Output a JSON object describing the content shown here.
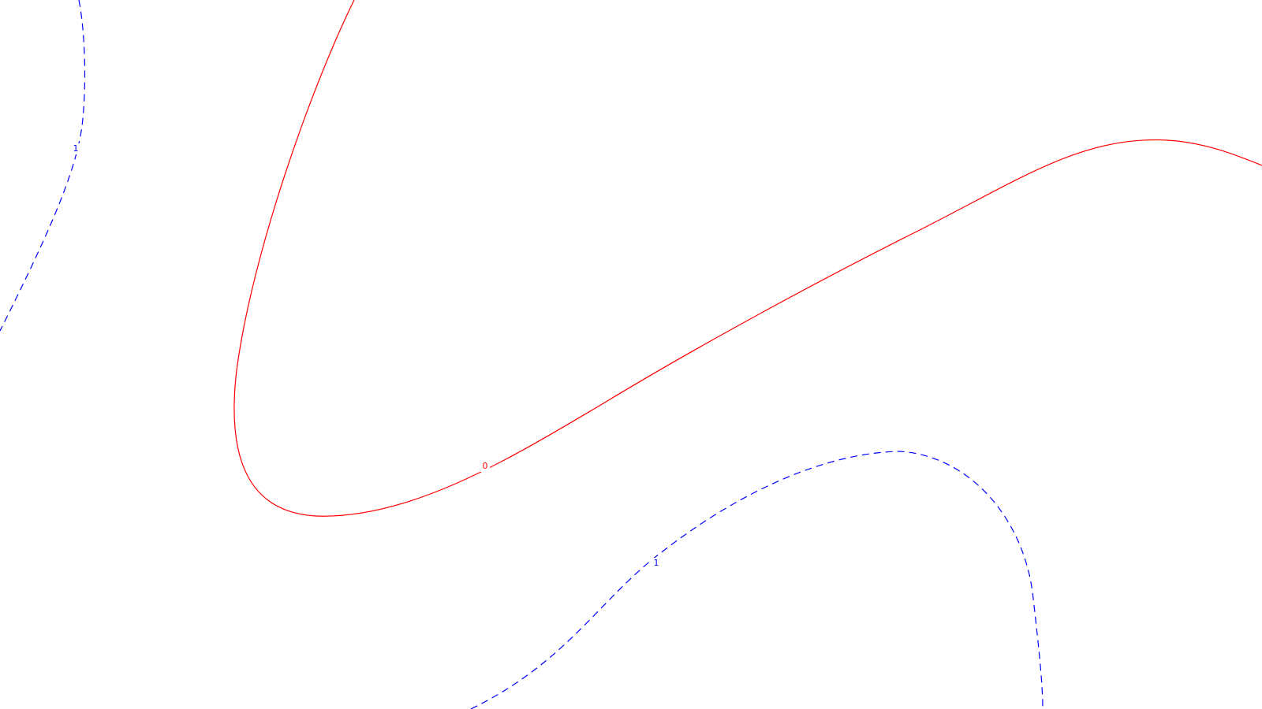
{
  "chart_data": {
    "type": "contour",
    "title": "",
    "xlabel": "",
    "ylabel": "",
    "grid": false,
    "legend": "none",
    "levels": [
      {
        "level": "1",
        "label": "1",
        "color": "#0000ff",
        "line_style": "dashed"
      },
      {
        "level": "0",
        "label": "0",
        "color": "#ff0000",
        "line_style": "solid"
      }
    ]
  }
}
